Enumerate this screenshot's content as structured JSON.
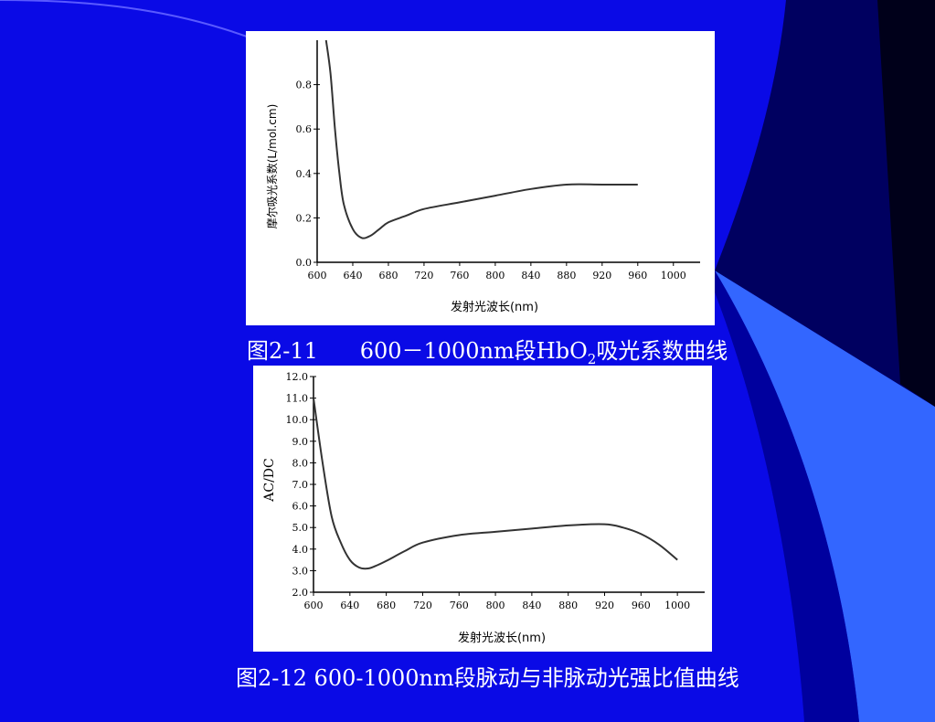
{
  "slide": {
    "background_color": "#0a0ae6",
    "caption1": {
      "prefix": "图2-11      600－1000nm段HbO",
      "sub": "2",
      "suffix": "吸光系数曲线"
    },
    "caption2": "图2-12 600-1000nm段脉动与非脉动光强比值曲线"
  },
  "chart_data": [
    {
      "type": "line",
      "title": "",
      "xlabel": "发射光波长(nm)",
      "ylabel": "摩尔吸光系数(L/mol.cm)",
      "xlim": [
        600,
        1030
      ],
      "ylim": [
        0.0,
        1.0
      ],
      "xticks": [
        "600",
        "640",
        "680",
        "720",
        "760",
        "800",
        "840",
        "880",
        "920",
        "960",
        "1000"
      ],
      "yticks": [
        "0.0",
        "0.2",
        "0.4",
        "0.6",
        "0.8"
      ],
      "x": [
        610,
        615,
        620,
        625,
        630,
        640,
        650,
        660,
        670,
        680,
        700,
        720,
        760,
        800,
        840,
        880,
        920,
        960
      ],
      "y": [
        1.0,
        0.85,
        0.6,
        0.4,
        0.26,
        0.15,
        0.11,
        0.12,
        0.15,
        0.18,
        0.21,
        0.24,
        0.27,
        0.3,
        0.33,
        0.35,
        0.35,
        0.35
      ]
    },
    {
      "type": "line",
      "title": "",
      "xlabel": "发射光波长(nm)",
      "ylabel": "AC/DC",
      "xlim": [
        600,
        1030
      ],
      "ylim": [
        2.0,
        12.0
      ],
      "xticks": [
        "600",
        "640",
        "680",
        "720",
        "760",
        "800",
        "840",
        "880",
        "920",
        "960",
        "1000"
      ],
      "yticks": [
        "2.0",
        "3.0",
        "4.0",
        "5.0",
        "6.0",
        "7.0",
        "8.0",
        "9.0",
        "10.0",
        "11.0",
        "12.0"
      ],
      "x": [
        600,
        610,
        620,
        630,
        640,
        650,
        660,
        670,
        680,
        700,
        720,
        760,
        800,
        840,
        880,
        920,
        940,
        960,
        980,
        1000
      ],
      "y": [
        11.0,
        8.0,
        5.5,
        4.3,
        3.5,
        3.15,
        3.1,
        3.25,
        3.45,
        3.9,
        4.3,
        4.65,
        4.8,
        4.95,
        5.1,
        5.15,
        5.0,
        4.7,
        4.2,
        3.5
      ]
    }
  ]
}
